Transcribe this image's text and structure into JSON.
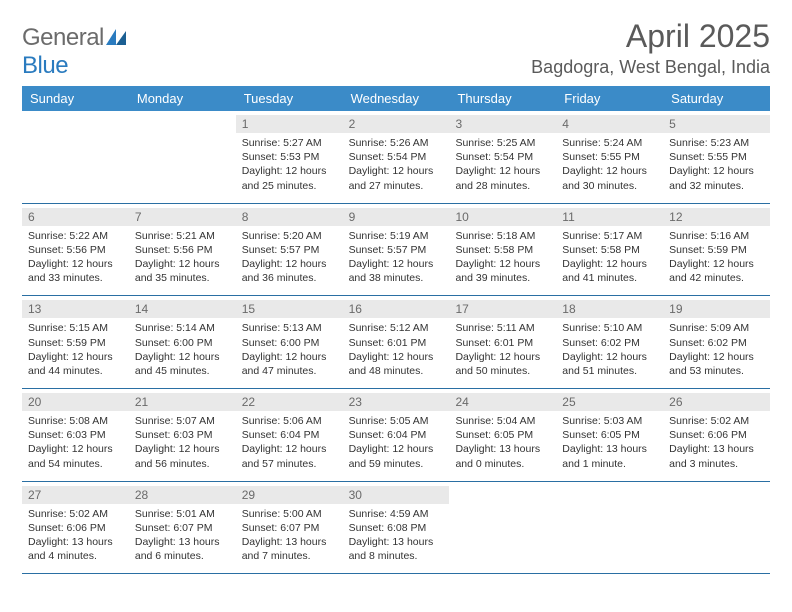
{
  "logo": {
    "part1": "General",
    "part2": "Blue"
  },
  "title": "April 2025",
  "location": "Bagdogra, West Bengal, India",
  "colors": {
    "header_bg": "#3b8bc8",
    "header_text": "#ffffff",
    "daynum_bg": "#e9e9e9",
    "daynum_text": "#6a6a6a",
    "week_border": "#2a6fa3",
    "body_text": "#333333",
    "title_text": "#5a5a5a"
  },
  "day_headers": [
    "Sunday",
    "Monday",
    "Tuesday",
    "Wednesday",
    "Thursday",
    "Friday",
    "Saturday"
  ],
  "weeks": [
    [
      {
        "num": "",
        "sunrise": "",
        "sunset": "",
        "daylight": ""
      },
      {
        "num": "",
        "sunrise": "",
        "sunset": "",
        "daylight": ""
      },
      {
        "num": "1",
        "sunrise": "Sunrise: 5:27 AM",
        "sunset": "Sunset: 5:53 PM",
        "daylight": "Daylight: 12 hours and 25 minutes."
      },
      {
        "num": "2",
        "sunrise": "Sunrise: 5:26 AM",
        "sunset": "Sunset: 5:54 PM",
        "daylight": "Daylight: 12 hours and 27 minutes."
      },
      {
        "num": "3",
        "sunrise": "Sunrise: 5:25 AM",
        "sunset": "Sunset: 5:54 PM",
        "daylight": "Daylight: 12 hours and 28 minutes."
      },
      {
        "num": "4",
        "sunrise": "Sunrise: 5:24 AM",
        "sunset": "Sunset: 5:55 PM",
        "daylight": "Daylight: 12 hours and 30 minutes."
      },
      {
        "num": "5",
        "sunrise": "Sunrise: 5:23 AM",
        "sunset": "Sunset: 5:55 PM",
        "daylight": "Daylight: 12 hours and 32 minutes."
      }
    ],
    [
      {
        "num": "6",
        "sunrise": "Sunrise: 5:22 AM",
        "sunset": "Sunset: 5:56 PM",
        "daylight": "Daylight: 12 hours and 33 minutes."
      },
      {
        "num": "7",
        "sunrise": "Sunrise: 5:21 AM",
        "sunset": "Sunset: 5:56 PM",
        "daylight": "Daylight: 12 hours and 35 minutes."
      },
      {
        "num": "8",
        "sunrise": "Sunrise: 5:20 AM",
        "sunset": "Sunset: 5:57 PM",
        "daylight": "Daylight: 12 hours and 36 minutes."
      },
      {
        "num": "9",
        "sunrise": "Sunrise: 5:19 AM",
        "sunset": "Sunset: 5:57 PM",
        "daylight": "Daylight: 12 hours and 38 minutes."
      },
      {
        "num": "10",
        "sunrise": "Sunrise: 5:18 AM",
        "sunset": "Sunset: 5:58 PM",
        "daylight": "Daylight: 12 hours and 39 minutes."
      },
      {
        "num": "11",
        "sunrise": "Sunrise: 5:17 AM",
        "sunset": "Sunset: 5:58 PM",
        "daylight": "Daylight: 12 hours and 41 minutes."
      },
      {
        "num": "12",
        "sunrise": "Sunrise: 5:16 AM",
        "sunset": "Sunset: 5:59 PM",
        "daylight": "Daylight: 12 hours and 42 minutes."
      }
    ],
    [
      {
        "num": "13",
        "sunrise": "Sunrise: 5:15 AM",
        "sunset": "Sunset: 5:59 PM",
        "daylight": "Daylight: 12 hours and 44 minutes."
      },
      {
        "num": "14",
        "sunrise": "Sunrise: 5:14 AM",
        "sunset": "Sunset: 6:00 PM",
        "daylight": "Daylight: 12 hours and 45 minutes."
      },
      {
        "num": "15",
        "sunrise": "Sunrise: 5:13 AM",
        "sunset": "Sunset: 6:00 PM",
        "daylight": "Daylight: 12 hours and 47 minutes."
      },
      {
        "num": "16",
        "sunrise": "Sunrise: 5:12 AM",
        "sunset": "Sunset: 6:01 PM",
        "daylight": "Daylight: 12 hours and 48 minutes."
      },
      {
        "num": "17",
        "sunrise": "Sunrise: 5:11 AM",
        "sunset": "Sunset: 6:01 PM",
        "daylight": "Daylight: 12 hours and 50 minutes."
      },
      {
        "num": "18",
        "sunrise": "Sunrise: 5:10 AM",
        "sunset": "Sunset: 6:02 PM",
        "daylight": "Daylight: 12 hours and 51 minutes."
      },
      {
        "num": "19",
        "sunrise": "Sunrise: 5:09 AM",
        "sunset": "Sunset: 6:02 PM",
        "daylight": "Daylight: 12 hours and 53 minutes."
      }
    ],
    [
      {
        "num": "20",
        "sunrise": "Sunrise: 5:08 AM",
        "sunset": "Sunset: 6:03 PM",
        "daylight": "Daylight: 12 hours and 54 minutes."
      },
      {
        "num": "21",
        "sunrise": "Sunrise: 5:07 AM",
        "sunset": "Sunset: 6:03 PM",
        "daylight": "Daylight: 12 hours and 56 minutes."
      },
      {
        "num": "22",
        "sunrise": "Sunrise: 5:06 AM",
        "sunset": "Sunset: 6:04 PM",
        "daylight": "Daylight: 12 hours and 57 minutes."
      },
      {
        "num": "23",
        "sunrise": "Sunrise: 5:05 AM",
        "sunset": "Sunset: 6:04 PM",
        "daylight": "Daylight: 12 hours and 59 minutes."
      },
      {
        "num": "24",
        "sunrise": "Sunrise: 5:04 AM",
        "sunset": "Sunset: 6:05 PM",
        "daylight": "Daylight: 13 hours and 0 minutes."
      },
      {
        "num": "25",
        "sunrise": "Sunrise: 5:03 AM",
        "sunset": "Sunset: 6:05 PM",
        "daylight": "Daylight: 13 hours and 1 minute."
      },
      {
        "num": "26",
        "sunrise": "Sunrise: 5:02 AM",
        "sunset": "Sunset: 6:06 PM",
        "daylight": "Daylight: 13 hours and 3 minutes."
      }
    ],
    [
      {
        "num": "27",
        "sunrise": "Sunrise: 5:02 AM",
        "sunset": "Sunset: 6:06 PM",
        "daylight": "Daylight: 13 hours and 4 minutes."
      },
      {
        "num": "28",
        "sunrise": "Sunrise: 5:01 AM",
        "sunset": "Sunset: 6:07 PM",
        "daylight": "Daylight: 13 hours and 6 minutes."
      },
      {
        "num": "29",
        "sunrise": "Sunrise: 5:00 AM",
        "sunset": "Sunset: 6:07 PM",
        "daylight": "Daylight: 13 hours and 7 minutes."
      },
      {
        "num": "30",
        "sunrise": "Sunrise: 4:59 AM",
        "sunset": "Sunset: 6:08 PM",
        "daylight": "Daylight: 13 hours and 8 minutes."
      },
      {
        "num": "",
        "sunrise": "",
        "sunset": "",
        "daylight": ""
      },
      {
        "num": "",
        "sunrise": "",
        "sunset": "",
        "daylight": ""
      },
      {
        "num": "",
        "sunrise": "",
        "sunset": "",
        "daylight": ""
      }
    ]
  ]
}
